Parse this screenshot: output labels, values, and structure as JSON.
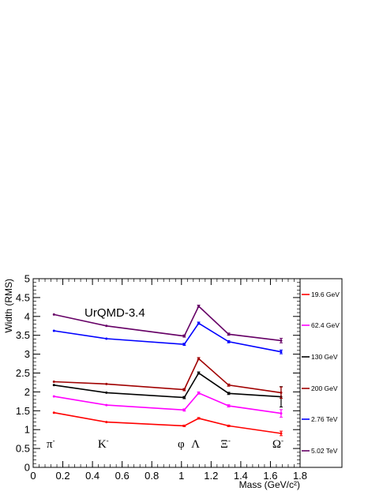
{
  "chart_data": {
    "type": "line",
    "title": "UrQMD-3.4",
    "xlabel": "Mass (GeV/c²)",
    "ylabel": "Width (RMS)",
    "xlim": [
      0,
      1.8
    ],
    "ylim": [
      0,
      5
    ],
    "xticks": [
      "0",
      "0.2",
      "0.4",
      "0.6",
      "0.8",
      "1",
      "1.2",
      "1.4",
      "1.6",
      "1.8"
    ],
    "yticks": [
      "0",
      "0.5",
      "1",
      "1.5",
      "2",
      "2.5",
      "3",
      "3.5",
      "4",
      "4.5",
      "5"
    ],
    "grid": false,
    "legend_position": "right",
    "x": [
      0.14,
      0.494,
      1.019,
      1.116,
      1.318,
      1.672
    ],
    "particle_labels": [
      {
        "text": "π",
        "sup": "-",
        "x": 0.14
      },
      {
        "text": "K",
        "sup": "-",
        "x": 0.494
      },
      {
        "text": "φ",
        "sup": "",
        "x": 1.019
      },
      {
        "text": "Λ",
        "sup": "",
        "x": 1.116
      },
      {
        "text": "Ξ",
        "sup": "-",
        "x": 1.318
      },
      {
        "text": "Ω",
        "sup": "-",
        "x": 1.672
      }
    ],
    "series": [
      {
        "name": "19.6 GeV",
        "color": "#ff0000",
        "values": [
          1.45,
          1.2,
          1.1,
          1.3,
          1.1,
          0.9
        ],
        "errors": [
          0,
          0,
          0.02,
          0.02,
          0.02,
          0.06
        ]
      },
      {
        "name": "62.4 GeV",
        "color": "#ff00ff",
        "values": [
          1.88,
          1.65,
          1.52,
          1.97,
          1.63,
          1.43
        ],
        "errors": [
          0,
          0,
          0.03,
          0.03,
          0.03,
          0.1
        ]
      },
      {
        "name": "130 GeV",
        "color": "#000000",
        "values": [
          2.18,
          1.98,
          1.85,
          2.5,
          1.96,
          1.87
        ],
        "errors": [
          0,
          0,
          0.03,
          0.03,
          0.03,
          0.27
        ]
      },
      {
        "name": "200 GeV",
        "color": "#a00000",
        "values": [
          2.27,
          2.21,
          2.06,
          2.88,
          2.18,
          1.98
        ],
        "errors": [
          0,
          0,
          0.03,
          0.03,
          0.03,
          0.15
        ]
      },
      {
        "name": "2.76 TeV",
        "color": "#0000ff",
        "values": [
          3.62,
          3.41,
          3.26,
          3.82,
          3.33,
          3.06
        ],
        "errors": [
          0,
          0,
          0.03,
          0.03,
          0.03,
          0.05
        ]
      },
      {
        "name": "5.02 TeV",
        "color": "#660066",
        "values": [
          4.05,
          3.75,
          3.48,
          4.27,
          3.53,
          3.36
        ],
        "errors": [
          0,
          0,
          0.03,
          0.03,
          0.03,
          0.06
        ]
      }
    ]
  }
}
